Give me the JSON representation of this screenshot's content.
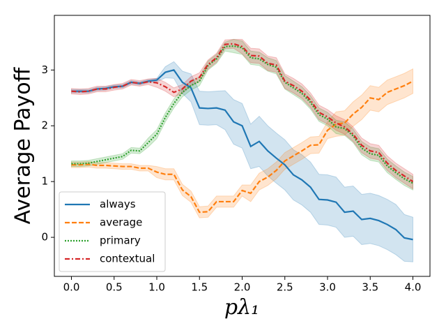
{
  "chart_data": {
    "type": "line",
    "xlabel": "pλ₁",
    "ylabel": "Average Payoff",
    "x": [
      0,
      0.1,
      0.2,
      0.3,
      0.4,
      0.5,
      0.6,
      0.7,
      0.8,
      0.9,
      1.0,
      1.1,
      1.2,
      1.3,
      1.4,
      1.5,
      1.6,
      1.7,
      1.8,
      1.9,
      2.0,
      2.1,
      2.2,
      2.3,
      2.4,
      2.5,
      2.6,
      2.7,
      2.8,
      2.9,
      3.0,
      3.1,
      3.2,
      3.3,
      3.4,
      3.5,
      3.6,
      3.7,
      3.8,
      3.9,
      4.0
    ],
    "xlim": [
      -0.2,
      4.2
    ],
    "xticks": [
      {
        "value": 0,
        "label": "0.0"
      },
      {
        "value": 0.5,
        "label": "0.5"
      },
      {
        "value": 1,
        "label": "1.0"
      },
      {
        "value": 1.5,
        "label": "1.5"
      },
      {
        "value": 2,
        "label": "2.0"
      },
      {
        "value": 2.5,
        "label": "2.5"
      },
      {
        "value": 3,
        "label": "3.0"
      },
      {
        "value": 3.5,
        "label": "3.5"
      },
      {
        "value": 4,
        "label": "4.0"
      }
    ],
    "ylim": [
      -0.7,
      3.98
    ],
    "yticks": [
      0,
      1,
      2,
      3
    ],
    "legend": "lower left",
    "series": [
      {
        "name": "always",
        "color": "#1f77b4",
        "linestyle": "solid",
        "values": [
          2.62,
          2.62,
          2.62,
          2.66,
          2.67,
          2.7,
          2.71,
          2.78,
          2.76,
          2.8,
          2.82,
          2.96,
          3.0,
          2.78,
          2.68,
          2.32,
          2.31,
          2.32,
          2.28,
          2.07,
          2.0,
          1.63,
          1.72,
          1.55,
          1.42,
          1.3,
          1.12,
          1.03,
          0.9,
          0.68,
          0.67,
          0.63,
          0.45,
          0.47,
          0.32,
          0.34,
          0.3,
          0.23,
          0.14,
          -0.01,
          -0.04
        ],
        "error": [
          0.03,
          0.03,
          0.03,
          0.03,
          0.03,
          0.03,
          0.03,
          0.03,
          0.03,
          0.03,
          0.03,
          0.1,
          0.15,
          0.2,
          0.25,
          0.3,
          0.3,
          0.3,
          0.35,
          0.4,
          0.4,
          0.4,
          0.45,
          0.45,
          0.45,
          0.45,
          0.45,
          0.45,
          0.45,
          0.45,
          0.45,
          0.45,
          0.45,
          0.45,
          0.45,
          0.45,
          0.45,
          0.45,
          0.45,
          0.42,
          0.4
        ]
      },
      {
        "name": "average",
        "color": "#ff7f0e",
        "linestyle": "dashed",
        "values": [
          1.3,
          1.3,
          1.31,
          1.29,
          1.29,
          1.28,
          1.27,
          1.27,
          1.24,
          1.24,
          1.17,
          1.13,
          1.13,
          0.85,
          0.73,
          0.45,
          0.46,
          0.64,
          0.64,
          0.64,
          0.84,
          0.79,
          1.0,
          1.08,
          1.2,
          1.37,
          1.46,
          1.55,
          1.65,
          1.66,
          1.92,
          2.03,
          2.05,
          2.21,
          2.33,
          2.5,
          2.47,
          2.6,
          2.66,
          2.72,
          2.8
        ],
        "error": [
          0.05,
          0.05,
          0.05,
          0.05,
          0.05,
          0.05,
          0.05,
          0.05,
          0.05,
          0.05,
          0.1,
          0.1,
          0.1,
          0.1,
          0.1,
          0.1,
          0.1,
          0.1,
          0.1,
          0.1,
          0.1,
          0.15,
          0.15,
          0.15,
          0.15,
          0.15,
          0.15,
          0.15,
          0.15,
          0.15,
          0.15,
          0.22,
          0.22,
          0.22,
          0.22,
          0.22,
          0.22,
          0.22,
          0.22,
          0.22,
          0.22
        ]
      },
      {
        "name": "primary",
        "color": "#2ca02c",
        "linestyle": "dotted",
        "values": [
          1.32,
          1.32,
          1.33,
          1.36,
          1.39,
          1.42,
          1.45,
          1.56,
          1.55,
          1.7,
          1.85,
          2.15,
          2.4,
          2.6,
          2.72,
          2.8,
          3.08,
          3.2,
          3.42,
          3.43,
          3.4,
          3.22,
          3.2,
          3.1,
          3.05,
          2.78,
          2.68,
          2.58,
          2.42,
          2.2,
          2.12,
          1.98,
          1.95,
          1.82,
          1.6,
          1.5,
          1.47,
          1.28,
          1.16,
          1.05,
          0.97
        ],
        "error": [
          0.05,
          0.05,
          0.05,
          0.05,
          0.05,
          0.05,
          0.05,
          0.05,
          0.05,
          0.08,
          0.08,
          0.08,
          0.08,
          0.08,
          0.08,
          0.08,
          0.08,
          0.08,
          0.08,
          0.12,
          0.12,
          0.12,
          0.12,
          0.12,
          0.12,
          0.12,
          0.12,
          0.12,
          0.12,
          0.12,
          0.12,
          0.12,
          0.12,
          0.12,
          0.12,
          0.12,
          0.12,
          0.12,
          0.12,
          0.12,
          0.12
        ]
      },
      {
        "name": "contextual",
        "color": "#d62728",
        "linestyle": "dashdot",
        "values": [
          2.62,
          2.61,
          2.62,
          2.66,
          2.66,
          2.69,
          2.71,
          2.78,
          2.76,
          2.79,
          2.77,
          2.7,
          2.6,
          2.66,
          2.8,
          2.87,
          3.1,
          3.22,
          3.46,
          3.47,
          3.42,
          3.26,
          3.25,
          3.12,
          3.09,
          2.8,
          2.72,
          2.62,
          2.46,
          2.24,
          2.16,
          2.05,
          1.98,
          1.85,
          1.65,
          1.55,
          1.52,
          1.33,
          1.2,
          1.1,
          1.0
        ],
        "error": [
          0.05,
          0.05,
          0.05,
          0.05,
          0.05,
          0.05,
          0.05,
          0.05,
          0.05,
          0.05,
          0.08,
          0.08,
          0.08,
          0.08,
          0.08,
          0.08,
          0.08,
          0.08,
          0.08,
          0.08,
          0.13,
          0.13,
          0.13,
          0.13,
          0.13,
          0.13,
          0.13,
          0.13,
          0.13,
          0.13,
          0.13,
          0.13,
          0.13,
          0.13,
          0.13,
          0.13,
          0.13,
          0.13,
          0.13,
          0.13,
          0.13
        ]
      }
    ]
  }
}
